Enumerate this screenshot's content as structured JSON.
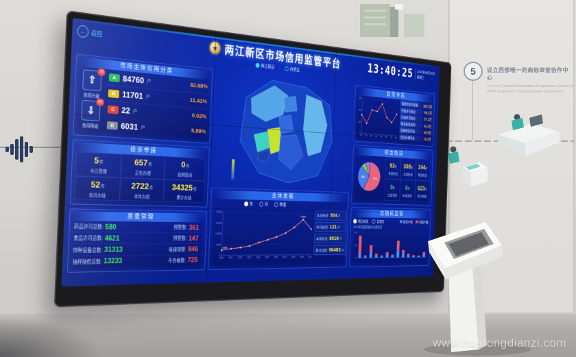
{
  "env": {
    "watermark": "www.huarongdianzi.com",
    "wall_note": {
      "number": "5",
      "cn": "设立西部唯一的商标审查协作中心",
      "en": "The only Patent Examination Cooperation Center of NIPO in Western China has been established."
    }
  },
  "screen": {
    "back_label": "返回",
    "header": {
      "title": "两江新区市场信用监管平台",
      "tabs": [
        "两江新区",
        "自贸区"
      ],
      "time": "13:40:25",
      "date": "2020年08月19日",
      "week": "星期三"
    },
    "credit": {
      "title": "市场主体信用分类",
      "up": {
        "badge": "76",
        "label": "信用升级"
      },
      "down": {
        "badge": "63",
        "label": "信用降级"
      },
      "rows": [
        {
          "grade": "A",
          "color": "#1db954",
          "count": "84760",
          "unit": "户",
          "pct": "82.68%"
        },
        {
          "grade": "B",
          "color": "#e7c413",
          "count": "11701",
          "unit": "户",
          "pct": "11.41%"
        },
        {
          "grade": "C",
          "color": "#e0392f",
          "count": "22",
          "unit": "户",
          "pct": "0.02%"
        },
        {
          "grade": "D",
          "color": "#76869c",
          "count": "6031",
          "unit": "户",
          "pct": "5.89%"
        }
      ]
    },
    "complaints": {
      "title": "投诉举报",
      "stats": [
        {
          "value": "5",
          "unit": "件",
          "label": "今日受理"
        },
        {
          "value": "657",
          "unit": "件",
          "label": "正在办理"
        },
        {
          "value": "0",
          "unit": "件",
          "label": "逾期投诉"
        },
        {
          "value": "52",
          "unit": "件",
          "label": "本月办结"
        },
        {
          "value": "2722",
          "unit": "件",
          "label": "本年办结"
        },
        {
          "value": "34325",
          "unit": "件",
          "label": "累计办结"
        }
      ]
    },
    "quality": {
      "title": "质量管理",
      "rows": [
        {
          "label": "药品许可总数:",
          "value": "580",
          "label2": "预警数:",
          "value2": "361"
        },
        {
          "label": "食品许可总数:",
          "value": "4621",
          "label2": "预警数:",
          "value2": "147"
        },
        {
          "label": "特种设备总数:",
          "value": "31313",
          "label2": "电梯预警:",
          "value2": "846"
        },
        {
          "label": "抽样抽检总数:",
          "value": "13233",
          "label2": "不合格数:",
          "value2": "725"
        }
      ]
    },
    "development": {
      "title": "主体发展",
      "options": [
        "年",
        "月",
        "季度"
      ],
      "stats": [
        {
          "label": "本周新增:",
          "value": "304",
          "unit": "户"
        },
        {
          "label": "本月新增:",
          "value": "121",
          "unit": "户"
        },
        {
          "label": "本年新增:",
          "value": "8919",
          "unit": "户"
        },
        {
          "label": "累计总数:",
          "value": "96483",
          "unit": "户"
        }
      ]
    },
    "ftz": {
      "title": "自贸专区",
      "items": [
        {
          "label": "信用信息归集量",
          "value": "182.6万"
        },
        {
          "label": "行政许可信息",
          "value": "96.3万"
        },
        {
          "label": "行政处罚信息",
          "value": "57.1万"
        },
        {
          "label": "联合奖惩案例",
          "value": "43.2万"
        },
        {
          "label": "信用修复申请",
          "value": "28.5万"
        },
        {
          "label": "异议处理申请",
          "value": "16.2万"
        }
      ]
    },
    "enforcement": {
      "title": "综合执法",
      "stats": [
        {
          "value": "93",
          "unit": "件",
          "label": "专项检查",
          "color": "#ffd23e"
        },
        {
          "value": "598",
          "unit": "件",
          "label": "日常检查",
          "color": "#ffd23e"
        },
        {
          "value": "244",
          "unit": "件",
          "label": "联合检查",
          "color": "#ffd23e"
        },
        {
          "value": "0",
          "unit": "件",
          "label": "立案调查",
          "color": "#35e065"
        },
        {
          "value": "0",
          "unit": "件",
          "label": "听证案件",
          "color": "#35e065"
        },
        {
          "value": "623",
          "unit": "件",
          "label": "累计办结",
          "color": "#d6e23e"
        }
      ]
    },
    "random": {
      "title": "双随机监管",
      "options": [
        "两江新区",
        "自贸区"
      ],
      "note": "2020年双随机抽查完成情况",
      "legend": [
        {
          "label": "检查户数",
          "color": "#4a90f0"
        },
        {
          "label": "问题户数",
          "color": "#e85a66"
        }
      ]
    }
  },
  "chart_data": [
    {
      "id": "development_line",
      "type": "line",
      "panel": "主体发展",
      "x": [
        "2010",
        "2011",
        "2012",
        "2013",
        "2014",
        "2015",
        "2016",
        "2017",
        "2018",
        "2019",
        "2020"
      ],
      "values": [
        2408,
        3050,
        3600,
        4300,
        5900,
        7200,
        8600,
        10400,
        13200,
        17004,
        12400
      ],
      "ylim": [
        0,
        20000
      ],
      "line_color": "#ff8a7a",
      "first_label": "2408",
      "peak_label": "17004",
      "yticks": [
        "20,000",
        "15,000",
        "10,000",
        "5,000",
        "0"
      ]
    },
    {
      "id": "ftz_line",
      "type": "line",
      "panel": "自贸专区",
      "x": [
        "1月",
        "2月",
        "3月",
        "4月",
        "5月",
        "6月",
        "7月",
        "8月"
      ],
      "values": [
        320,
        180,
        420,
        400,
        540,
        310,
        230,
        380
      ],
      "ylim": [
        0,
        600
      ],
      "line_color": "#ff6a6a",
      "yticks": [
        "600",
        "400",
        "200",
        "0"
      ]
    },
    {
      "id": "enforcement_pie",
      "type": "pie",
      "panel": "综合执法",
      "slices": [
        {
          "label": "现场检查",
          "pct": "58%",
          "value": 58,
          "color": "#e8637e"
        },
        {
          "label": "网络监测",
          "pct": "30%",
          "value": 30,
          "color": "#4a7df0"
        },
        {
          "label": "抽查核查",
          "pct": "6%",
          "value": 6,
          "color": "#7ad24c"
        },
        {
          "label": "其他",
          "pct": "6%",
          "value": 6,
          "color": "#9a7df0"
        }
      ]
    },
    {
      "id": "random_bars",
      "type": "bar-stacked",
      "panel": "双随机监管",
      "categories": [
        "1",
        "2",
        "3",
        "4",
        "5",
        "6",
        "7",
        "8",
        "9",
        "10",
        "11",
        "12",
        "13"
      ],
      "series": [
        {
          "name": "检查户数",
          "color": "#4a90f0",
          "values": [
            18,
            6,
            22,
            10,
            6,
            14,
            8,
            30,
            16,
            10,
            6,
            5,
            12
          ]
        },
        {
          "name": "问题户数",
          "color": "#e85a66",
          "values": [
            70,
            4,
            28,
            6,
            3,
            8,
            4,
            38,
            14,
            5,
            3,
            2,
            9
          ]
        }
      ],
      "ylim": [
        0,
        100
      ],
      "yticks": [
        "100",
        "50",
        "0"
      ]
    }
  ]
}
